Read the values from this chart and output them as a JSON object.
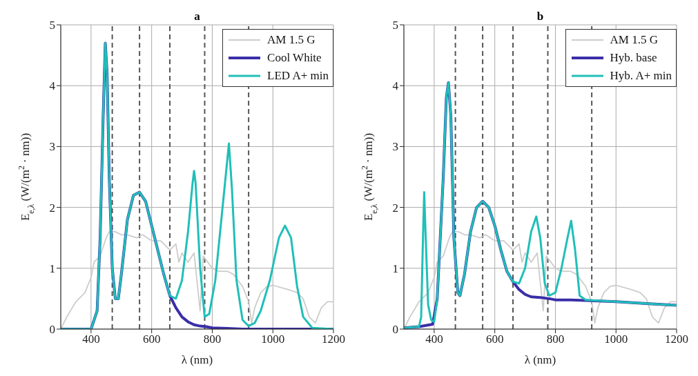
{
  "chart_data": [
    {
      "type": "line",
      "title": "a",
      "xlabel": "λ (nm)",
      "ylabel": "E$_{e,λ}$ (W/(m$^{2}$ · nm))",
      "xlim": [
        300,
        1200
      ],
      "xticks": [
        400,
        600,
        800,
        1000,
        1200
      ],
      "ylim": [
        0,
        5
      ],
      "yticks": [
        0,
        1,
        2,
        3,
        4,
        5
      ],
      "grid": true,
      "legend": "top right",
      "line_style": "solid",
      "marker": "none",
      "ref_lines": [
        {
          "axis": "x",
          "value": 470,
          "color": "#555555",
          "line_style": "dashed"
        },
        {
          "axis": "x",
          "value": 560,
          "color": "#555555",
          "line_style": "dashed"
        },
        {
          "axis": "x",
          "value": 660,
          "color": "#555555",
          "line_style": "dashed"
        },
        {
          "axis": "x",
          "value": 775,
          "color": "#555555",
          "line_style": "dashed"
        },
        {
          "axis": "x",
          "value": 920,
          "color": "#555555",
          "line_style": "dashed"
        }
      ],
      "series": [
        {
          "name": "AM 1.5 G",
          "color": "#cccccc",
          "x": [
            300,
            320,
            350,
            380,
            400,
            410,
            430,
            450,
            460,
            480,
            500,
            520,
            550,
            570,
            600,
            630,
            660,
            680,
            690,
            700,
            720,
            740,
            760,
            770,
            800,
            820,
            850,
            870,
            900,
            920,
            930,
            940,
            960,
            980,
            1000,
            1050,
            1080,
            1100,
            1120,
            1140,
            1160,
            1180,
            1200
          ],
          "values": [
            0,
            0.2,
            0.45,
            0.6,
            0.85,
            1.1,
            1.2,
            1.5,
            1.6,
            1.6,
            1.55,
            1.55,
            1.5,
            1.55,
            1.45,
            1.45,
            1.3,
            1.4,
            1.1,
            1.25,
            1.1,
            1.25,
            0.3,
            1.2,
            1.0,
            0.95,
            0.95,
            0.9,
            0.7,
            0.45,
            0.1,
            0.35,
            0.6,
            0.7,
            0.72,
            0.65,
            0.6,
            0.5,
            0.2,
            0.1,
            0.35,
            0.45,
            0.45
          ]
        },
        {
          "name": "Cool White",
          "color": "#3a2ea8",
          "x": [
            300,
            400,
            420,
            430,
            440,
            447,
            453,
            460,
            470,
            480,
            490,
            500,
            520,
            540,
            560,
            580,
            600,
            620,
            640,
            660,
            680,
            700,
            720,
            740,
            760,
            780,
            800,
            850,
            900,
            1200
          ],
          "values": [
            0,
            0,
            0.3,
            1.5,
            3.5,
            4.7,
            4.2,
            2.5,
            1.0,
            0.5,
            0.5,
            0.9,
            1.8,
            2.2,
            2.25,
            2.1,
            1.7,
            1.3,
            0.9,
            0.55,
            0.35,
            0.2,
            0.12,
            0.07,
            0.05,
            0.04,
            0.02,
            0.01,
            0,
            0
          ]
        },
        {
          "name": "LED A+ min",
          "color": "#1fbfb8",
          "x": [
            300,
            400,
            420,
            430,
            440,
            447,
            453,
            460,
            470,
            480,
            490,
            500,
            520,
            540,
            560,
            580,
            600,
            620,
            640,
            660,
            680,
            700,
            720,
            735,
            740,
            745,
            760,
            775,
            790,
            810,
            840,
            855,
            865,
            880,
            900,
            920,
            940,
            960,
            990,
            1020,
            1040,
            1060,
            1080,
            1100,
            1130,
            1200
          ],
          "values": [
            0,
            0,
            0.3,
            1.5,
            3.5,
            4.7,
            4.2,
            2.5,
            1.0,
            0.5,
            0.5,
            0.9,
            1.8,
            2.2,
            2.25,
            2.1,
            1.7,
            1.3,
            0.9,
            0.55,
            0.5,
            0.8,
            1.6,
            2.4,
            2.6,
            2.4,
            1.0,
            0.2,
            0.25,
            0.8,
            2.3,
            3.05,
            2.3,
            0.8,
            0.15,
            0.05,
            0.1,
            0.3,
            0.8,
            1.5,
            1.7,
            1.5,
            0.7,
            0.2,
            0.02,
            0
          ]
        }
      ]
    },
    {
      "type": "line",
      "title": "b",
      "xlabel": "λ (nm)",
      "ylabel": "E$_{e,λ}$ (W/(m$^{2}$ · nm))",
      "xlim": [
        300,
        1200
      ],
      "xticks": [
        400,
        600,
        800,
        1000,
        1200
      ],
      "ylim": [
        0,
        5
      ],
      "yticks": [
        0,
        1,
        2,
        3,
        4,
        5
      ],
      "grid": true,
      "legend": "top right",
      "line_style": "solid",
      "marker": "none",
      "ref_lines": [
        {
          "axis": "x",
          "value": 470,
          "color": "#555555",
          "line_style": "dashed"
        },
        {
          "axis": "x",
          "value": 560,
          "color": "#555555",
          "line_style": "dashed"
        },
        {
          "axis": "x",
          "value": 660,
          "color": "#555555",
          "line_style": "dashed"
        },
        {
          "axis": "x",
          "value": 775,
          "color": "#555555",
          "line_style": "dashed"
        },
        {
          "axis": "x",
          "value": 920,
          "color": "#555555",
          "line_style": "dashed"
        }
      ],
      "series": [
        {
          "name": "AM 1.5 G",
          "color": "#cccccc",
          "x": [
            300,
            320,
            350,
            380,
            400,
            410,
            430,
            450,
            460,
            480,
            500,
            520,
            550,
            570,
            600,
            630,
            660,
            680,
            690,
            700,
            720,
            740,
            760,
            770,
            800,
            820,
            850,
            870,
            900,
            920,
            930,
            940,
            960,
            980,
            1000,
            1050,
            1080,
            1100,
            1120,
            1140,
            1160,
            1180,
            1200
          ],
          "values": [
            0,
            0.2,
            0.45,
            0.6,
            0.85,
            1.1,
            1.2,
            1.5,
            1.6,
            1.6,
            1.55,
            1.55,
            1.5,
            1.55,
            1.45,
            1.45,
            1.3,
            1.4,
            1.1,
            1.25,
            1.1,
            1.25,
            0.3,
            1.2,
            1.0,
            0.95,
            0.95,
            0.9,
            0.7,
            0.45,
            0.1,
            0.35,
            0.6,
            0.7,
            0.72,
            0.65,
            0.6,
            0.5,
            0.2,
            0.1,
            0.35,
            0.45,
            0.45
          ]
        },
        {
          "name": "Hyb. base",
          "color": "#3a2ea8",
          "x": [
            300,
            350,
            395,
            410,
            430,
            440,
            447,
            455,
            465,
            478,
            485,
            500,
            520,
            540,
            560,
            580,
            600,
            620,
            640,
            660,
            680,
            700,
            720,
            750,
            780,
            800,
            850,
            900,
            1000,
            1100,
            1200
          ],
          "values": [
            0.02,
            0.04,
            0.08,
            0.5,
            2.5,
            3.8,
            4.05,
            3.5,
            1.5,
            0.6,
            0.55,
            0.9,
            1.6,
            2.0,
            2.1,
            2.0,
            1.7,
            1.3,
            0.95,
            0.78,
            0.65,
            0.57,
            0.53,
            0.52,
            0.5,
            0.48,
            0.48,
            0.47,
            0.45,
            0.42,
            0.39
          ]
        },
        {
          "name": "Hyb. A+ min",
          "color": "#1fbfb8",
          "x": [
            300,
            350,
            357,
            363,
            367,
            372,
            380,
            390,
            400,
            410,
            430,
            440,
            447,
            455,
            465,
            478,
            485,
            500,
            520,
            540,
            560,
            580,
            600,
            620,
            640,
            660,
            680,
            700,
            720,
            737,
            750,
            765,
            780,
            800,
            820,
            840,
            852,
            865,
            880,
            900,
            1000,
            1100,
            1200
          ],
          "values": [
            0.02,
            0.04,
            0.2,
            1.5,
            2.25,
            1.5,
            0.4,
            0.15,
            0.12,
            0.5,
            2.5,
            3.8,
            4.05,
            3.5,
            1.5,
            0.6,
            0.55,
            0.9,
            1.6,
            2.0,
            2.1,
            2.0,
            1.7,
            1.3,
            0.95,
            0.78,
            0.75,
            1.0,
            1.6,
            1.85,
            1.5,
            0.75,
            0.55,
            0.6,
            1.0,
            1.5,
            1.78,
            1.3,
            0.55,
            0.48,
            0.45,
            0.42,
            0.39
          ]
        }
      ]
    }
  ]
}
